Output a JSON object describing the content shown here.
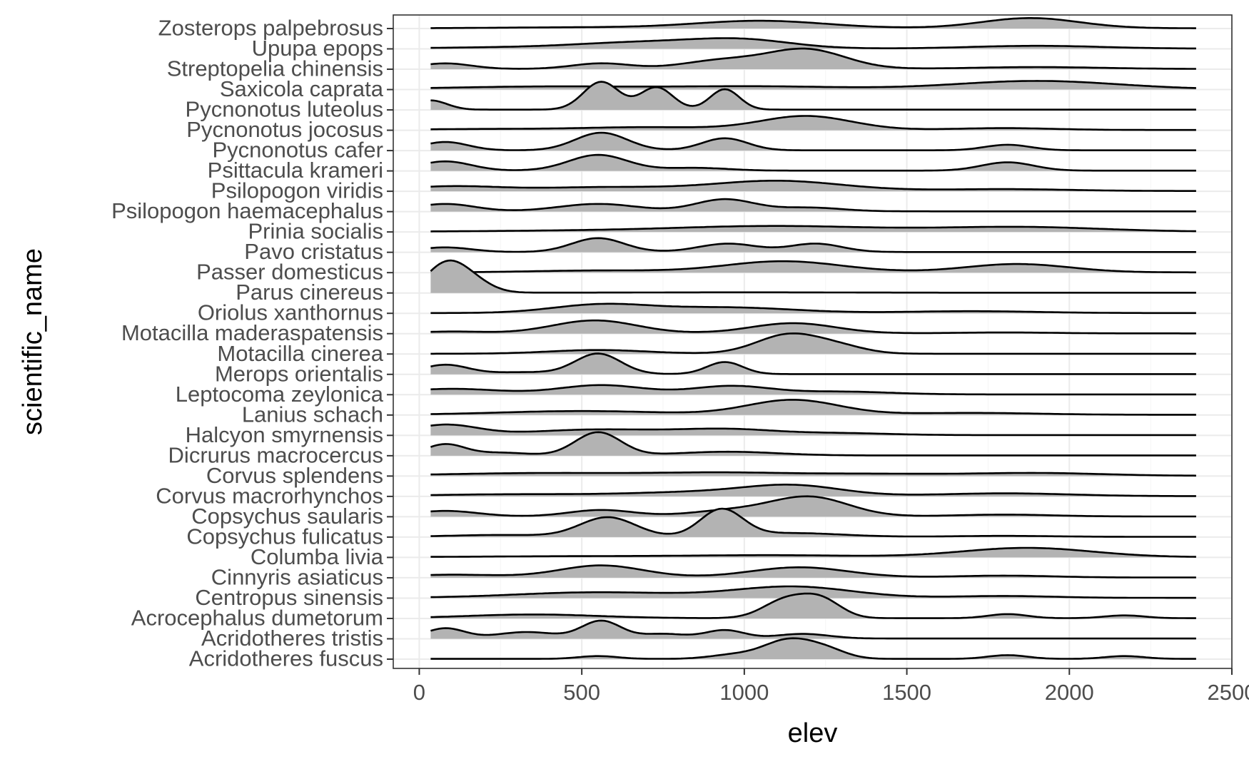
{
  "chart_data": {
    "type": "ridgeline",
    "xlabel": "elev",
    "ylabel": "scientific_name",
    "xlim": [
      -80,
      2500
    ],
    "x_ticks": [
      0,
      500,
      1000,
      1500,
      2000,
      2500
    ],
    "x_tick_labels": [
      "0",
      "500",
      "1000",
      "1500",
      "2000",
      "2500"
    ],
    "x_range_data": [
      35,
      2390
    ],
    "grid": true,
    "fill_color": "#b3b3b3",
    "categories": [
      "Acridotheres fuscus",
      "Acridotheres tristis",
      "Acrocephalus dumetorum",
      "Centropus sinensis",
      "Cinnyris asiaticus",
      "Columba livia",
      "Copsychus fulicatus",
      "Copsychus saularis",
      "Corvus macrorhynchos",
      "Corvus splendens",
      "Dicrurus macrocercus",
      "Halcyon smyrnensis",
      "Lanius schach",
      "Leptocoma zeylonica",
      "Merops orientalis",
      "Motacilla cinerea",
      "Motacilla maderaspatensis",
      "Oriolus xanthornus",
      "Parus cinereus",
      "Passer domesticus",
      "Pavo cristatus",
      "Prinia socialis",
      "Psilopogon haemacephalus",
      "Psilopogon viridis",
      "Psittacula krameri",
      "Pycnonotus cafer",
      "Pycnonotus jocosus",
      "Pycnonotus luteolus",
      "Saxicola caprata",
      "Streptopelia chinensis",
      "Upupa epops",
      "Zosterops palpebrosus"
    ],
    "densities": [
      {
        "name": "Acridotheres fuscus",
        "peaks": [
          [
            550,
            0.15,
            60
          ],
          [
            960,
            0.2,
            70
          ],
          [
            1140,
            1.05,
            80
          ],
          [
            1260,
            0.35,
            60
          ],
          [
            1810,
            0.2,
            60
          ],
          [
            2170,
            0.15,
            60
          ]
        ]
      },
      {
        "name": "Acridotheres tristis",
        "peaks": [
          [
            80,
            0.55,
            60
          ],
          [
            330,
            0.35,
            90
          ],
          [
            560,
            0.95,
            60
          ],
          [
            750,
            0.25,
            70
          ],
          [
            940,
            0.45,
            60
          ],
          [
            1180,
            0.25,
            80
          ]
        ]
      },
      {
        "name": "Acrocephalus dumetorum",
        "peaks": [
          [
            350,
            0.2,
            200
          ],
          [
            1130,
            1.0,
            70
          ],
          [
            1240,
            0.9,
            60
          ],
          [
            1810,
            0.22,
            60
          ],
          [
            2170,
            0.15,
            60
          ]
        ]
      },
      {
        "name": "Centropus sinensis",
        "peaks": [
          [
            550,
            0.3,
            250
          ],
          [
            1150,
            0.6,
            180
          ],
          [
            1800,
            0.1,
            150
          ]
        ]
      },
      {
        "name": "Cinnyris asiaticus",
        "peaks": [
          [
            100,
            0.15,
            150
          ],
          [
            560,
            0.65,
            130
          ],
          [
            1170,
            0.55,
            150
          ],
          [
            1800,
            0.1,
            150
          ]
        ]
      },
      {
        "name": "Columba livia",
        "peaks": [
          [
            500,
            0.05,
            300
          ],
          [
            1100,
            0.1,
            250
          ],
          [
            1870,
            0.5,
            200
          ]
        ]
      },
      {
        "name": "Copsychus fulicatus",
        "peaks": [
          [
            250,
            0.1,
            150
          ],
          [
            580,
            1.05,
            85
          ],
          [
            930,
            1.45,
            65
          ],
          [
            1150,
            0.2,
            150
          ],
          [
            1800,
            0.05,
            150
          ]
        ]
      },
      {
        "name": "Copsychus saularis",
        "peaks": [
          [
            80,
            0.3,
            100
          ],
          [
            560,
            0.35,
            100
          ],
          [
            950,
            0.3,
            120
          ],
          [
            1200,
            1.05,
            120
          ],
          [
            1800,
            0.1,
            150
          ]
        ]
      },
      {
        "name": "Corvus macrorhynchos",
        "peaks": [
          [
            300,
            0.1,
            250
          ],
          [
            850,
            0.2,
            200
          ],
          [
            1150,
            0.55,
            150
          ],
          [
            1800,
            0.15,
            200
          ]
        ]
      },
      {
        "name": "Corvus splendens",
        "peaks": [
          [
            400,
            0.15,
            300
          ],
          [
            950,
            0.15,
            200
          ],
          [
            1400,
            0.1,
            200
          ],
          [
            1900,
            0.15,
            200
          ]
        ]
      },
      {
        "name": "Dicrurus macrocercus",
        "peaks": [
          [
            80,
            0.6,
            60
          ],
          [
            250,
            0.15,
            80
          ],
          [
            550,
            1.25,
            70
          ],
          [
            950,
            0.2,
            150
          ]
        ]
      },
      {
        "name": "Halcyon smyrnensis",
        "peaks": [
          [
            80,
            0.55,
            100
          ],
          [
            550,
            0.3,
            200
          ],
          [
            950,
            0.3,
            150
          ],
          [
            1300,
            0.1,
            150
          ]
        ]
      },
      {
        "name": "Lanius schach",
        "peaks": [
          [
            500,
            0.2,
            250
          ],
          [
            1150,
            0.8,
            140
          ],
          [
            1700,
            0.1,
            200
          ]
        ]
      },
      {
        "name": "Leptocoma zeylonica",
        "peaks": [
          [
            100,
            0.3,
            150
          ],
          [
            560,
            0.5,
            130
          ],
          [
            960,
            0.45,
            120
          ],
          [
            1300,
            0.15,
            150
          ]
        ]
      },
      {
        "name": "Merops orientalis",
        "peaks": [
          [
            80,
            0.5,
            70
          ],
          [
            550,
            1.1,
            70
          ],
          [
            940,
            0.65,
            55
          ],
          [
            320,
            0.1,
            100
          ]
        ]
      },
      {
        "name": "Motacilla cinerea",
        "peaks": [
          [
            550,
            0.2,
            150
          ],
          [
            1140,
            1.05,
            100
          ],
          [
            1300,
            0.3,
            80
          ]
        ]
      },
      {
        "name": "Motacilla maderaspatensis",
        "peaks": [
          [
            100,
            0.1,
            100
          ],
          [
            540,
            0.7,
            130
          ],
          [
            1150,
            0.55,
            130
          ],
          [
            1800,
            0.05,
            150
          ]
        ]
      },
      {
        "name": "Oriolus xanthornus",
        "peaks": [
          [
            560,
            0.45,
            150
          ],
          [
            950,
            0.3,
            200
          ],
          [
            1700,
            0.1,
            200
          ]
        ]
      },
      {
        "name": "Parus cinereus",
        "peaks": [
          [
            80,
            1.45,
            60
          ],
          [
            160,
            0.6,
            60
          ],
          [
            1000,
            0.02,
            300
          ]
        ]
      },
      {
        "name": "Passer domesticus",
        "peaks": [
          [
            550,
            0.1,
            200
          ],
          [
            1120,
            0.6,
            180
          ],
          [
            1840,
            0.45,
            160
          ]
        ]
      },
      {
        "name": "Pavo cristatus",
        "peaks": [
          [
            80,
            0.25,
            80
          ],
          [
            550,
            0.75,
            80
          ],
          [
            950,
            0.45,
            90
          ],
          [
            1220,
            0.45,
            80
          ]
        ]
      },
      {
        "name": "Prinia socialis",
        "peaks": [
          [
            500,
            0.05,
            300
          ],
          [
            1100,
            0.3,
            300
          ],
          [
            1850,
            0.25,
            250
          ]
        ]
      },
      {
        "name": "Psilopogon haemacephalus",
        "peaks": [
          [
            80,
            0.4,
            90
          ],
          [
            550,
            0.4,
            120
          ],
          [
            940,
            0.65,
            90
          ],
          [
            1200,
            0.2,
            100
          ]
        ]
      },
      {
        "name": "Psilopogon viridis",
        "peaks": [
          [
            100,
            0.25,
            150
          ],
          [
            560,
            0.2,
            200
          ],
          [
            1100,
            0.55,
            200
          ],
          [
            1800,
            0.1,
            200
          ]
        ]
      },
      {
        "name": "Psittacula krameri",
        "peaks": [
          [
            80,
            0.5,
            80
          ],
          [
            550,
            0.85,
            90
          ],
          [
            850,
            0.15,
            100
          ],
          [
            1810,
            0.45,
            80
          ]
        ]
      },
      {
        "name": "Pycnonotus cafer",
        "peaks": [
          [
            80,
            0.45,
            70
          ],
          [
            560,
            0.95,
            80
          ],
          [
            940,
            0.65,
            70
          ],
          [
            1810,
            0.3,
            70
          ]
        ]
      },
      {
        "name": "Pycnonotus jocosus",
        "peaks": [
          [
            200,
            0.05,
            200
          ],
          [
            700,
            0.15,
            200
          ],
          [
            1190,
            0.75,
            140
          ],
          [
            1800,
            0.1,
            150
          ]
        ]
      },
      {
        "name": "Pycnonotus luteolus",
        "peaks": [
          [
            35,
            0.5,
            50
          ],
          [
            560,
            1.5,
            55
          ],
          [
            730,
            1.2,
            50
          ],
          [
            940,
            1.1,
            45
          ]
        ]
      },
      {
        "name": "Saxicola caprata",
        "peaks": [
          [
            400,
            0.15,
            300
          ],
          [
            1050,
            0.15,
            250
          ],
          [
            1900,
            0.45,
            250
          ]
        ]
      },
      {
        "name": "Streptopelia chinensis",
        "peaks": [
          [
            80,
            0.3,
            80
          ],
          [
            560,
            0.3,
            90
          ],
          [
            930,
            0.45,
            120
          ],
          [
            1190,
            1.05,
            120
          ],
          [
            1900,
            0.1,
            200
          ]
        ]
      },
      {
        "name": "Upupa epops",
        "peaks": [
          [
            200,
            0.05,
            200
          ],
          [
            700,
            0.35,
            220
          ],
          [
            1000,
            0.4,
            150
          ],
          [
            1900,
            0.15,
            200
          ]
        ]
      },
      {
        "name": "Zosterops palpebrosus",
        "peaks": [
          [
            500,
            0.05,
            250
          ],
          [
            1050,
            0.4,
            200
          ],
          [
            1880,
            0.55,
            150
          ]
        ]
      }
    ]
  }
}
